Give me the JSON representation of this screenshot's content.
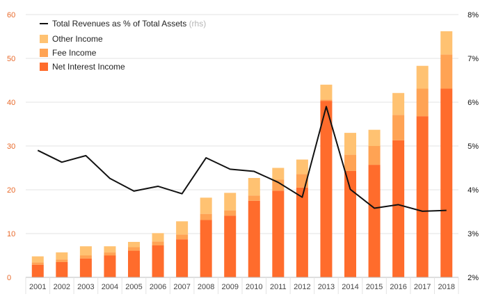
{
  "chart_data": {
    "type": "bar",
    "stacked": true,
    "categories": [
      "2001",
      "2002",
      "2003",
      "2004",
      "2005",
      "2006",
      "2007",
      "2008",
      "2009",
      "2010",
      "2011",
      "2012",
      "2013",
      "2014",
      "2015",
      "2016",
      "2017",
      "2018"
    ],
    "series": [
      {
        "name": "Net Interest Income",
        "color": "#ff6c2c",
        "values": [
          2.9,
          3.5,
          4.3,
          5.0,
          6.1,
          7.3,
          8.7,
          13.1,
          14.1,
          17.5,
          19.8,
          20.5,
          40.3,
          24.3,
          25.7,
          31.3,
          36.8,
          43.1
        ]
      },
      {
        "name": "Fee Income",
        "color": "#ffa354",
        "values": [
          0.5,
          0.6,
          0.7,
          0.7,
          0.8,
          0.9,
          1.1,
          1.4,
          1.2,
          1.2,
          2.5,
          3.1,
          0.3,
          3.7,
          4.3,
          5.8,
          6.3,
          7.8
        ]
      },
      {
        "name": "Other Income",
        "color": "#ffc272",
        "values": [
          1.4,
          1.6,
          2.1,
          1.4,
          1.2,
          1.9,
          3.0,
          3.7,
          4.0,
          4.0,
          2.7,
          3.3,
          3.4,
          5.0,
          3.7,
          5.0,
          5.2,
          5.3
        ]
      }
    ],
    "line": {
      "name": "Total Revenues as % of Total Assets",
      "name_note": "(rhs)",
      "color": "#111111",
      "axis": "right",
      "values": [
        4.9,
        4.63,
        4.78,
        4.26,
        3.97,
        4.08,
        3.91,
        4.73,
        4.47,
        4.42,
        4.17,
        3.83,
        5.9,
        4.01,
        3.58,
        3.66,
        3.51,
        3.53
      ]
    },
    "ylim": [
      0,
      60
    ],
    "yticks": [
      "0",
      "10",
      "20",
      "30",
      "40",
      "50",
      "60"
    ],
    "y2lim": [
      2,
      8
    ],
    "y2ticks": [
      "2%",
      "3%",
      "4%",
      "5%",
      "6%",
      "7%",
      "8%"
    ],
    "grid": true,
    "legend_position": "top-left",
    "colors": {
      "left_axis_text": "#e8692a",
      "right_axis_text": "#111111",
      "grid": "#e3e3e3"
    }
  }
}
